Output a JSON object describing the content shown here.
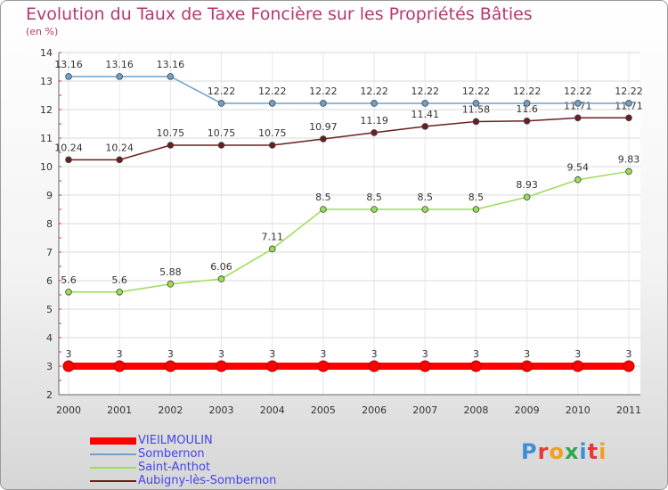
{
  "title": "Evolution du Taux de Taxe Foncière sur les Propriétés Bâties",
  "units": "(en %)",
  "logo": "Proxiti",
  "chart_data": {
    "type": "line",
    "x": [
      "2000",
      "2001",
      "2002",
      "2003",
      "2004",
      "2005",
      "2006",
      "2007",
      "2008",
      "2009",
      "2010",
      "2011"
    ],
    "ylim": [
      2,
      14
    ],
    "yticks": [
      2,
      3,
      4,
      5,
      6,
      7,
      8,
      9,
      10,
      11,
      12,
      13,
      14
    ],
    "grid": true,
    "legend": "bottom-left",
    "series": [
      {
        "name": "VIEILMOULIN",
        "color": "#ff0000",
        "values": [
          3,
          3,
          3,
          3,
          3,
          3,
          3,
          3,
          3,
          3,
          3,
          3
        ],
        "labels": [
          "3",
          "3",
          "3",
          "3",
          "3",
          "3",
          "3",
          "3",
          "3",
          "3",
          "3",
          "3"
        ]
      },
      {
        "name": "Sombernon",
        "color": "#6ea0cc",
        "values": [
          13.16,
          13.16,
          13.16,
          12.22,
          12.22,
          12.22,
          12.22,
          12.22,
          12.22,
          12.22,
          12.22,
          12.22
        ],
        "labels": [
          "13.16",
          "13.16",
          "13.16",
          "12.22",
          "12.22",
          "12.22",
          "12.22",
          "12.22",
          "12.22",
          "12.22",
          "12.22",
          "12.22"
        ]
      },
      {
        "name": "Saint-Anthot",
        "color": "#99dd55",
        "values": [
          5.6,
          5.6,
          5.88,
          6.06,
          7.11,
          8.5,
          8.5,
          8.5,
          8.5,
          8.93,
          9.54,
          9.83
        ],
        "labels": [
          "5.6",
          "5.6",
          "5.88",
          "6.06",
          "7.11",
          "8.5",
          "8.5",
          "8.5",
          "8.5",
          "8.93",
          "9.54",
          "9.83"
        ]
      },
      {
        "name": "Aubigny-lès-Sombernon",
        "color": "#6b1e1e",
        "values": [
          10.24,
          10.24,
          10.75,
          10.75,
          10.75,
          10.97,
          11.19,
          11.41,
          11.58,
          11.6,
          11.71,
          11.71
        ],
        "labels": [
          "10.24",
          "10.24",
          "10.75",
          "10.75",
          "10.75",
          "10.97",
          "11.19",
          "11.41",
          "11.58",
          "11.6",
          "11.71",
          "11.71"
        ]
      }
    ]
  }
}
